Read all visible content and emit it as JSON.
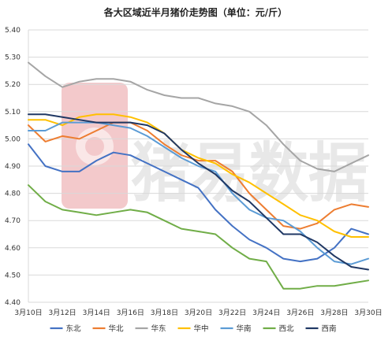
{
  "chart_data": {
    "type": "line",
    "title": "各大区域近半月猪价走势图（单位：元/斤）",
    "xlabel": "",
    "ylabel": "",
    "ylim": [
      4.4,
      5.4
    ],
    "yticks": [
      "5.40",
      "5.30",
      "5.20",
      "5.10",
      "5.00",
      "4.90",
      "4.80",
      "4.70",
      "4.60",
      "4.50",
      "4.40"
    ],
    "x": [
      "3月10日",
      "3月11日",
      "3月12日",
      "3月13日",
      "3月14日",
      "3月15日",
      "3月16日",
      "3月17日",
      "3月18日",
      "3月19日",
      "3月20日",
      "3月21日",
      "3月22日",
      "3月23日",
      "3月24日",
      "3月25日",
      "3月26日",
      "3月27日",
      "3月28日",
      "3月29日",
      "3月30日"
    ],
    "xticks": [
      "3月10日",
      "3月12日",
      "3月14日",
      "3月16日",
      "3月18日",
      "3月20日",
      "3月22日",
      "3月24日",
      "3月26日",
      "3月28日",
      "3月30日"
    ],
    "grid": true,
    "legend_position": "bottom",
    "series": [
      {
        "name": "东北",
        "color": "#4472c4",
        "values": [
          4.98,
          4.9,
          4.88,
          4.88,
          4.92,
          4.95,
          4.94,
          4.91,
          4.88,
          4.85,
          4.82,
          4.74,
          4.68,
          4.63,
          4.6,
          4.56,
          4.55,
          4.56,
          4.6,
          4.67,
          4.65
        ]
      },
      {
        "name": "华北",
        "color": "#ed7d31",
        "values": [
          5.05,
          4.99,
          5.01,
          5.0,
          5.03,
          5.06,
          5.06,
          5.03,
          4.98,
          4.94,
          4.92,
          4.92,
          4.88,
          4.8,
          4.74,
          4.68,
          4.67,
          4.69,
          4.74,
          4.76,
          4.75
        ]
      },
      {
        "name": "华东",
        "color": "#a5a5a5",
        "values": [
          5.28,
          5.23,
          5.19,
          5.21,
          5.22,
          5.22,
          5.21,
          5.18,
          5.16,
          5.15,
          5.15,
          5.13,
          5.12,
          5.1,
          5.05,
          4.98,
          4.92,
          4.89,
          4.88,
          4.91,
          4.94
        ]
      },
      {
        "name": "华中",
        "color": "#ffc000",
        "values": [
          5.07,
          5.07,
          5.05,
          5.08,
          5.09,
          5.09,
          5.08,
          5.06,
          5.02,
          4.96,
          4.93,
          4.91,
          4.87,
          4.84,
          4.8,
          4.76,
          4.72,
          4.7,
          4.66,
          4.64,
          4.64
        ]
      },
      {
        "name": "华南",
        "color": "#5b9bd5",
        "values": [
          5.03,
          5.03,
          5.06,
          5.06,
          5.06,
          5.05,
          5.04,
          5.01,
          4.97,
          4.93,
          4.9,
          4.88,
          4.8,
          4.74,
          4.71,
          4.7,
          4.66,
          4.6,
          4.55,
          4.54,
          4.56
        ]
      },
      {
        "name": "西北",
        "color": "#70ad47",
        "values": [
          4.83,
          4.77,
          4.74,
          4.73,
          4.72,
          4.73,
          4.74,
          4.73,
          4.7,
          4.67,
          4.66,
          4.65,
          4.6,
          4.56,
          4.55,
          4.45,
          4.45,
          4.46,
          4.46,
          4.47,
          4.48
        ]
      },
      {
        "name": "西南",
        "color": "#203864",
        "values": [
          5.09,
          5.09,
          5.08,
          5.07,
          5.06,
          5.06,
          5.06,
          5.05,
          5.02,
          4.96,
          4.91,
          4.87,
          4.81,
          4.77,
          4.71,
          4.65,
          4.65,
          4.62,
          4.57,
          4.53,
          4.52
        ]
      }
    ]
  },
  "watermark": {
    "text": "猪易数据",
    "color": "#e8e8e8",
    "logo_color": "#f3c9cb"
  }
}
